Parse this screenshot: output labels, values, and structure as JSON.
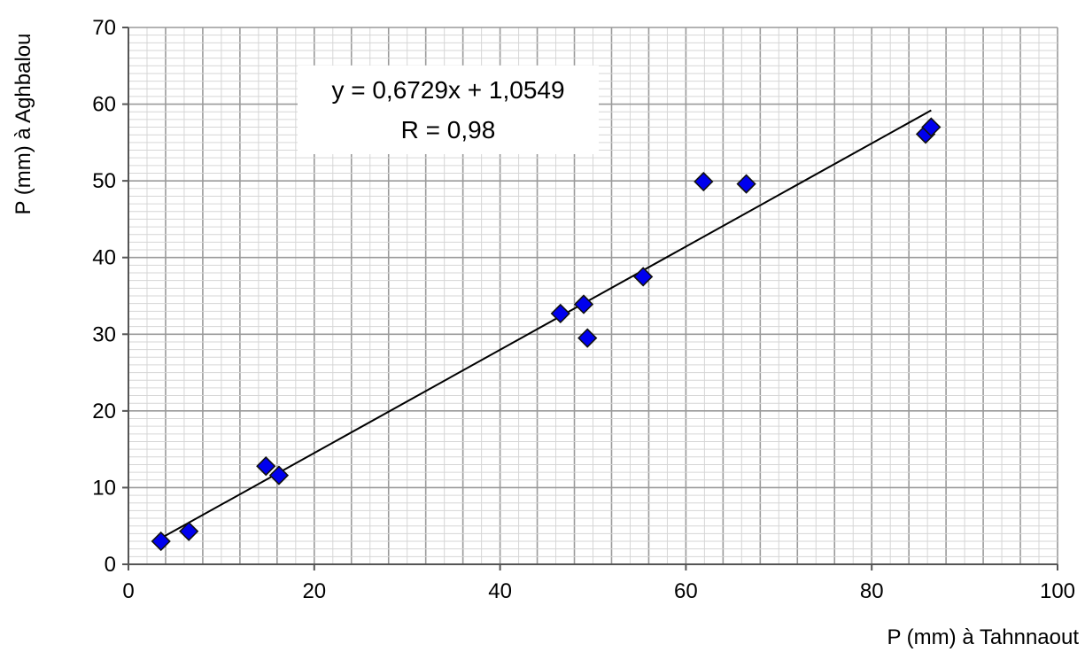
{
  "chart_data": {
    "type": "scatter",
    "xlabel": "P (mm) à Tahnnaout",
    "ylabel": "P (mm) à Aghbalou",
    "xlim": [
      0,
      100
    ],
    "ylim": [
      0,
      70
    ],
    "x_ticks": [
      0,
      20,
      40,
      60,
      80,
      100
    ],
    "y_ticks": [
      0,
      10,
      20,
      30,
      40,
      50,
      60,
      70
    ],
    "major_grid_x_step": 4,
    "minor_grid_x_step": 2,
    "major_grid_y_step": 10,
    "minor_grid_y_step": 1,
    "grid": true,
    "marker": "diamond",
    "marker_color": "#0000ee",
    "series": [
      {
        "points": [
          {
            "x": 3.5,
            "y": 3.0
          },
          {
            "x": 6.5,
            "y": 4.3
          },
          {
            "x": 14.8,
            "y": 12.8
          },
          {
            "x": 16.2,
            "y": 11.6
          },
          {
            "x": 46.5,
            "y": 32.7
          },
          {
            "x": 49.0,
            "y": 33.9
          },
          {
            "x": 49.4,
            "y": 29.5
          },
          {
            "x": 55.4,
            "y": 37.5
          },
          {
            "x": 61.9,
            "y": 49.9
          },
          {
            "x": 66.5,
            "y": 49.6
          },
          {
            "x": 85.8,
            "y": 56.1
          },
          {
            "x": 86.4,
            "y": 57.0
          }
        ]
      }
    ],
    "trendline": {
      "slope": 0.6729,
      "intercept": 1.0549,
      "x_range": [
        3.5,
        86.4
      ],
      "color": "#000000"
    },
    "annotations": {
      "equation": "y = 0,6729x + 1,0549",
      "r_value": "R = 0,98"
    }
  }
}
